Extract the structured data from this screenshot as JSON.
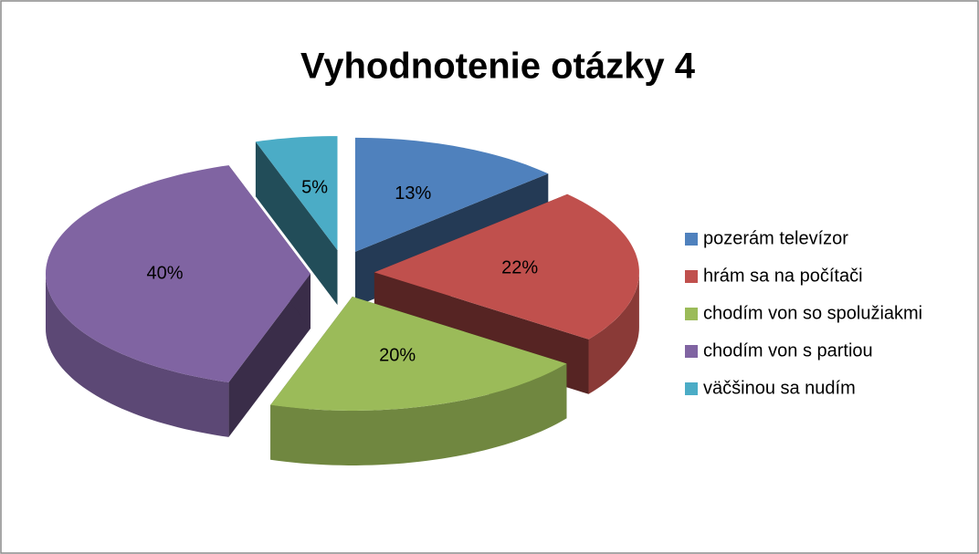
{
  "chart_data": {
    "type": "pie",
    "title": "Vyhodnotenie otázky 4",
    "categories": [
      "pozerám televízor",
      "hrám sa na počítači",
      "chodím von so spolužiakmi",
      "chodím von s partiou",
      "väčšinou sa nudím"
    ],
    "values": [
      13,
      22,
      20,
      40,
      5
    ],
    "value_labels": [
      "13%",
      "22%",
      "20%",
      "40%",
      "5%"
    ],
    "colors": [
      "#4f81bd",
      "#c0504d",
      "#9bbb59",
      "#8064a2",
      "#4bacc6"
    ],
    "legend": "right"
  }
}
